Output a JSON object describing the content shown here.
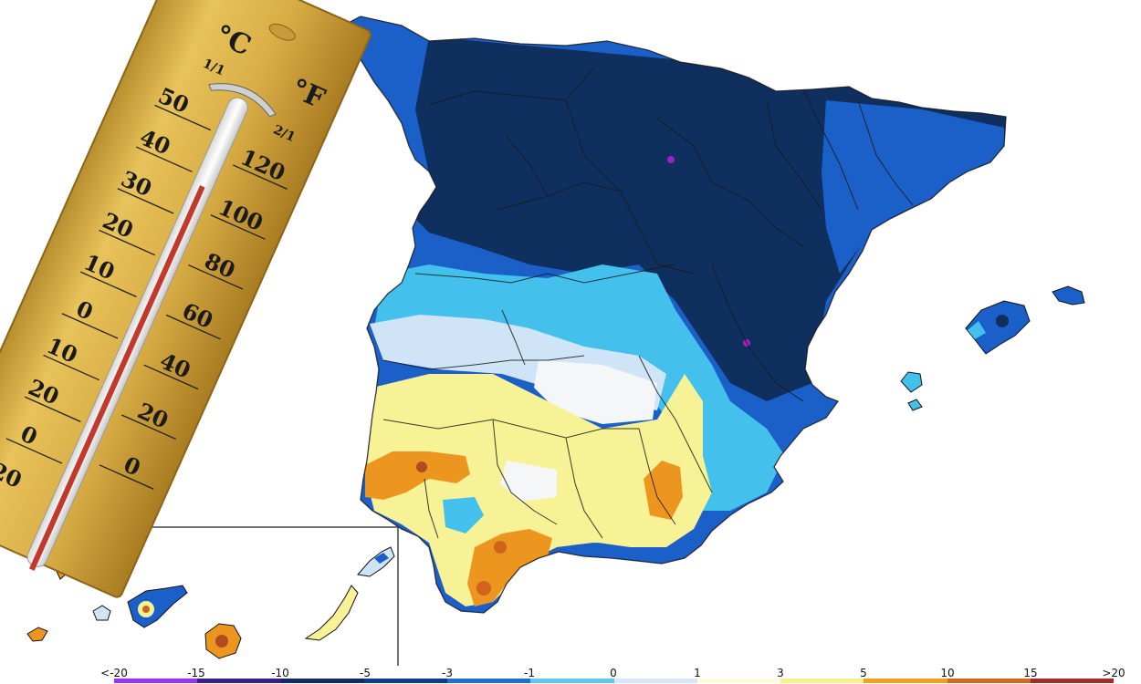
{
  "thermometer": {
    "celsius_symbol": "°C",
    "fahrenheit_symbol": "°F",
    "celsius_fraction": "1/1",
    "fahrenheit_fraction": "2/1",
    "celsius_labels": [
      "50",
      "40",
      "30",
      "20",
      "10",
      "0",
      "10",
      "20",
      "0",
      "20"
    ],
    "fahrenheit_labels": [
      "120",
      "100",
      "80",
      "60",
      "40",
      "20",
      "0"
    ]
  },
  "legend": {
    "labels": [
      "<-20",
      "-15",
      "-10",
      "-5",
      "-3",
      "-1",
      "0",
      "1",
      "3",
      "5",
      "10",
      "15",
      ">20"
    ],
    "colors": [
      "#9b30ff",
      "#3b1e8a",
      "#122a66",
      "#0b3d8c",
      "#1f6fd1",
      "#5fc8ee",
      "#d6e8f7",
      "#fffbe0",
      "#f7ef8a",
      "#f0a020",
      "#d2691e",
      "#a52a2a"
    ]
  },
  "colors": {
    "dark_navy": "#0f2f5f",
    "blue": "#1b5fc9",
    "light_blue": "#43c1ec",
    "pale_blue": "#cfe4f6",
    "white_anomaly": "#f4f6f8",
    "yellow": "#f6f295",
    "orange": "#ec9620",
    "dark_orange": "#d1631b",
    "red_brown": "#b44a22",
    "magenta": "#a020c0"
  }
}
